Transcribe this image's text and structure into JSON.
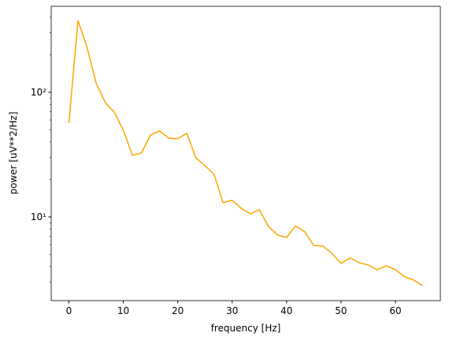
{
  "chart_data": {
    "type": "line",
    "xlabel": "frequency [Hz]",
    "ylabel": "power [uV**2/Hz]",
    "x": [
      0,
      1.67,
      3.33,
      5,
      6.67,
      8.33,
      10,
      11.67,
      13.33,
      15,
      16.67,
      18.33,
      20,
      21.67,
      23.33,
      25,
      26.67,
      28.33,
      30,
      31.67,
      33.33,
      35,
      36.67,
      38.33,
      40,
      41.67,
      43.33,
      45,
      46.67,
      48.33,
      50,
      51.67,
      53.33,
      55,
      56.67,
      58.33,
      60,
      61.67,
      63.33,
      65
    ],
    "series": [
      {
        "color": "#ffa500",
        "values": [
          56.6,
          377,
          230,
          119,
          82.8,
          69.5,
          49.6,
          31.2,
          32.6,
          45.5,
          49,
          43,
          42.4,
          46.9,
          29.8,
          25.8,
          22,
          13,
          13.6,
          11.7,
          10.6,
          11.4,
          8.4,
          7.15,
          6.85,
          8.5,
          7.6,
          5.9,
          5.83,
          5.1,
          4.24,
          4.69,
          4.29,
          4.11,
          3.77,
          4.05,
          3.77,
          3.31,
          3.12,
          2.81
        ]
      }
    ],
    "xlim": [
      -3.25,
      68.25
    ],
    "xticks": [
      0,
      10,
      20,
      30,
      40,
      50,
      60
    ],
    "ylim": [
      2.13,
      490
    ],
    "yscale": "log",
    "yticks": [
      {
        "value": 10,
        "label": "10¹"
      },
      {
        "value": 100,
        "label": "10²"
      }
    ],
    "yminor_ticks": [
      3,
      4,
      5,
      6,
      7,
      8,
      9,
      20,
      30,
      40,
      50,
      60,
      70,
      80,
      90,
      200,
      300,
      400
    ]
  }
}
